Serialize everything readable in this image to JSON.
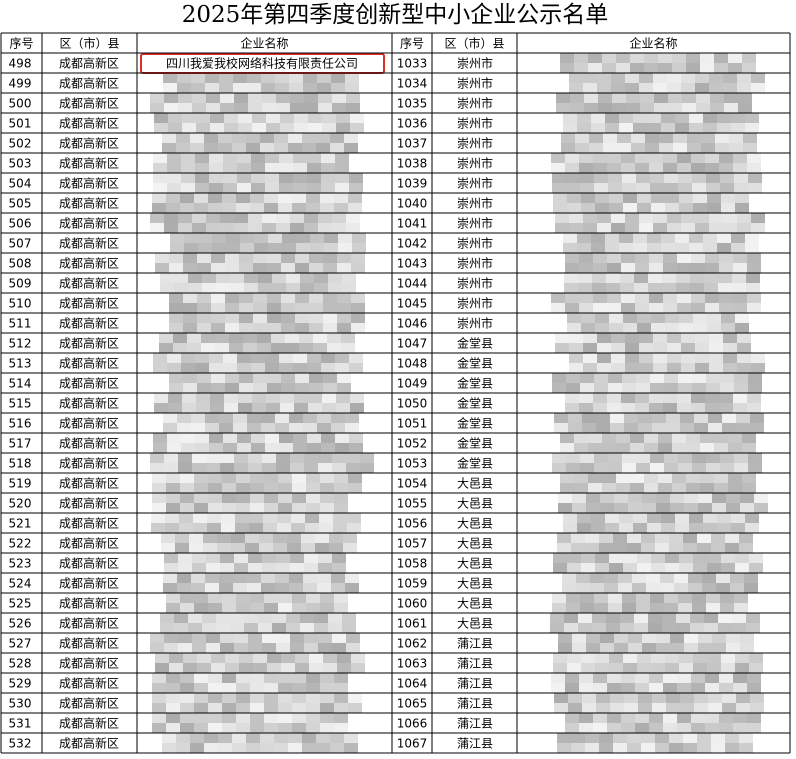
{
  "title": "2025年第四季度创新型中小企业公示名单",
  "table": {
    "headers": [
      "序号",
      "区（市）县",
      "企业名称",
      "序号",
      "区（市）县",
      "企业名称"
    ],
    "highlighted_name": "四川我爱我校网络科技有限责任公司",
    "rows": [
      [
        498,
        "成都高新区",
        1033,
        "崇州市"
      ],
      [
        499,
        "成都高新区",
        1034,
        "崇州市"
      ],
      [
        500,
        "成都高新区",
        1035,
        "崇州市"
      ],
      [
        501,
        "成都高新区",
        1036,
        "崇州市"
      ],
      [
        502,
        "成都高新区",
        1037,
        "崇州市"
      ],
      [
        503,
        "成都高新区",
        1038,
        "崇州市"
      ],
      [
        504,
        "成都高新区",
        1039,
        "崇州市"
      ],
      [
        505,
        "成都高新区",
        1040,
        "崇州市"
      ],
      [
        506,
        "成都高新区",
        1041,
        "崇州市"
      ],
      [
        507,
        "成都高新区",
        1042,
        "崇州市"
      ],
      [
        508,
        "成都高新区",
        1043,
        "崇州市"
      ],
      [
        509,
        "成都高新区",
        1044,
        "崇州市"
      ],
      [
        510,
        "成都高新区",
        1045,
        "崇州市"
      ],
      [
        511,
        "成都高新区",
        1046,
        "崇州市"
      ],
      [
        512,
        "成都高新区",
        1047,
        "金堂县"
      ],
      [
        513,
        "成都高新区",
        1048,
        "金堂县"
      ],
      [
        514,
        "成都高新区",
        1049,
        "金堂县"
      ],
      [
        515,
        "成都高新区",
        1050,
        "金堂县"
      ],
      [
        516,
        "成都高新区",
        1051,
        "金堂县"
      ],
      [
        517,
        "成都高新区",
        1052,
        "金堂县"
      ],
      [
        518,
        "成都高新区",
        1053,
        "金堂县"
      ],
      [
        519,
        "成都高新区",
        1054,
        "大邑县"
      ],
      [
        520,
        "成都高新区",
        1055,
        "大邑县"
      ],
      [
        521,
        "成都高新区",
        1056,
        "大邑县"
      ],
      [
        522,
        "成都高新区",
        1057,
        "大邑县"
      ],
      [
        523,
        "成都高新区",
        1058,
        "大邑县"
      ],
      [
        524,
        "成都高新区",
        1059,
        "大邑县"
      ],
      [
        525,
        "成都高新区",
        1060,
        "大邑县"
      ],
      [
        526,
        "成都高新区",
        1061,
        "大邑县"
      ],
      [
        527,
        "成都高新区",
        1062,
        "蒲江县"
      ],
      [
        528,
        "成都高新区",
        1063,
        "蒲江县"
      ],
      [
        529,
        "成都高新区",
        1064,
        "蒲江县"
      ],
      [
        530,
        "成都高新区",
        1065,
        "蒲江县"
      ],
      [
        531,
        "成都高新区",
        1066,
        "蒲江县"
      ],
      [
        532,
        "成都高新区",
        1067,
        "蒲江县"
      ]
    ]
  }
}
